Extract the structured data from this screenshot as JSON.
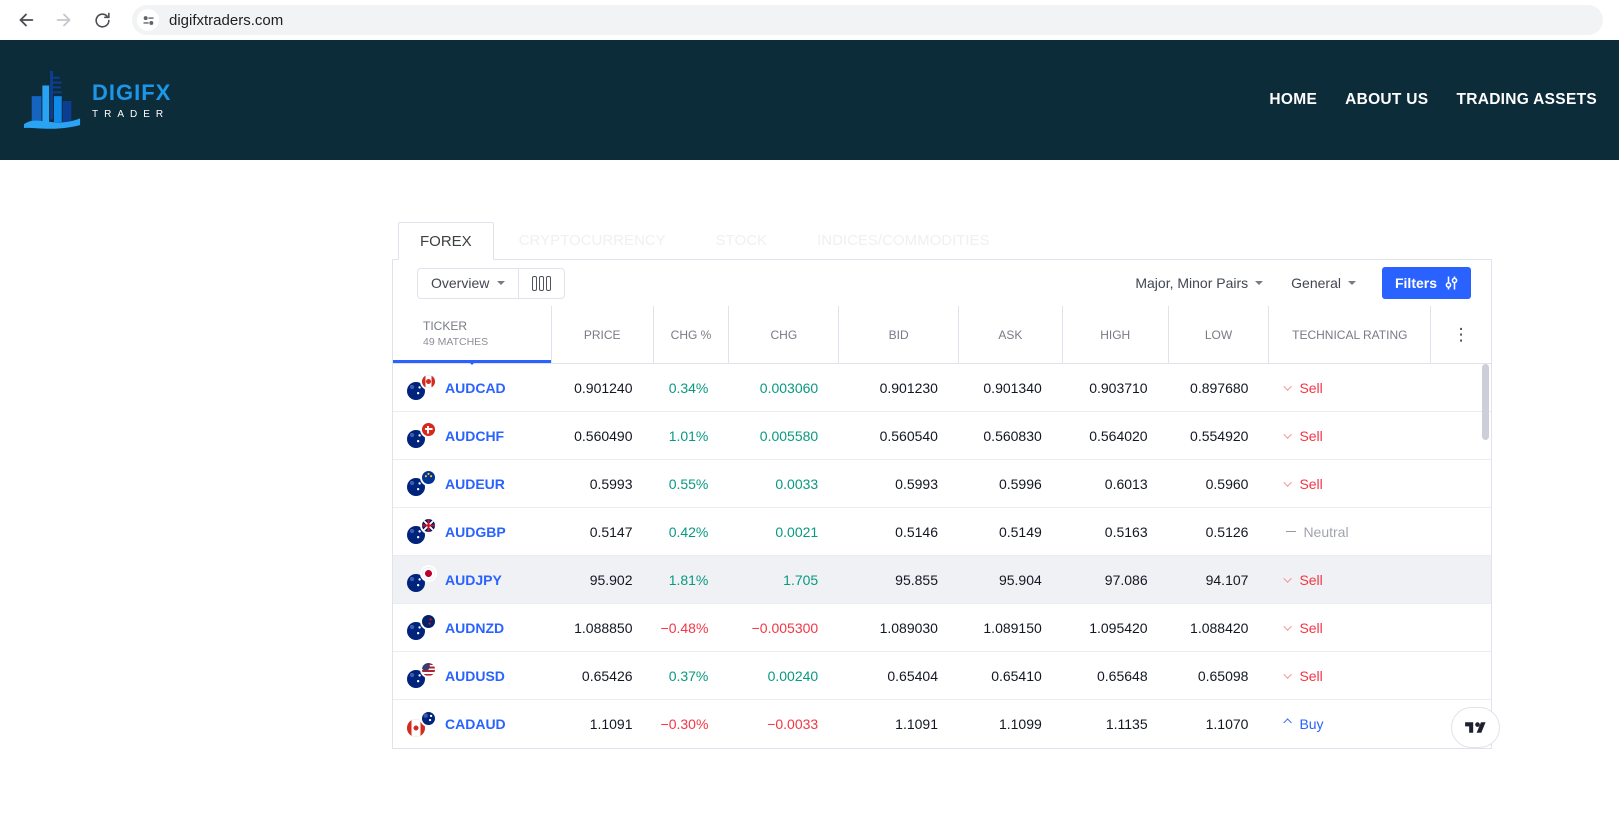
{
  "browser": {
    "url": "digifxtraders.com"
  },
  "header": {
    "logo_title": "DIGIFX",
    "logo_subtitle": "TRADER",
    "nav": [
      {
        "label": "HOME"
      },
      {
        "label": "ABOUT US"
      },
      {
        "label": "TRADING ASSETS"
      }
    ]
  },
  "widget": {
    "tabs": [
      {
        "label": "FOREX",
        "active": true
      },
      {
        "label": "CRYPTOCURRENCY",
        "active": false
      },
      {
        "label": "STOCK",
        "active": false
      },
      {
        "label": "INDICES/COMMODITIES",
        "active": false
      }
    ],
    "toolbar": {
      "view": "Overview",
      "pairs_filter": "Major, Minor Pairs",
      "category_filter": "General",
      "filters_label": "Filters"
    },
    "table": {
      "ticker_header": "TICKER",
      "matches_label": "49 MATCHES",
      "columns": [
        {
          "label": "PRICE"
        },
        {
          "label": "CHG %"
        },
        {
          "label": "CHG"
        },
        {
          "label": "BID"
        },
        {
          "label": "ASK"
        },
        {
          "label": "HIGH"
        },
        {
          "label": "LOW"
        },
        {
          "label": "TECHNICAL RATING"
        }
      ],
      "rows": [
        {
          "ticker": "AUDCAD",
          "base": "aud",
          "quote": "cad",
          "price": "0.901240",
          "chg_pct": "0.34%",
          "chg": "0.003060",
          "bid": "0.901230",
          "ask": "0.901340",
          "high": "0.903710",
          "low": "0.897680",
          "chg_dir": "up",
          "rating": "Sell",
          "rating_kind": "sell",
          "highlighted": false
        },
        {
          "ticker": "AUDCHF",
          "base": "aud",
          "quote": "chf",
          "price": "0.560490",
          "chg_pct": "1.01%",
          "chg": "0.005580",
          "bid": "0.560540",
          "ask": "0.560830",
          "high": "0.564020",
          "low": "0.554920",
          "chg_dir": "up",
          "rating": "Sell",
          "rating_kind": "sell",
          "highlighted": false
        },
        {
          "ticker": "AUDEUR",
          "base": "aud",
          "quote": "eur",
          "price": "0.5993",
          "chg_pct": "0.55%",
          "chg": "0.0033",
          "bid": "0.5993",
          "ask": "0.5996",
          "high": "0.6013",
          "low": "0.5960",
          "chg_dir": "up",
          "rating": "Sell",
          "rating_kind": "sell",
          "highlighted": false
        },
        {
          "ticker": "AUDGBP",
          "base": "aud",
          "quote": "gbp",
          "price": "0.5147",
          "chg_pct": "0.42%",
          "chg": "0.0021",
          "bid": "0.5146",
          "ask": "0.5149",
          "high": "0.5163",
          "low": "0.5126",
          "chg_dir": "up",
          "rating": "Neutral",
          "rating_kind": "neutral",
          "highlighted": false
        },
        {
          "ticker": "AUDJPY",
          "base": "aud",
          "quote": "jpy",
          "price": "95.902",
          "chg_pct": "1.81%",
          "chg": "1.705",
          "bid": "95.855",
          "ask": "95.904",
          "high": "97.086",
          "low": "94.107",
          "chg_dir": "up",
          "rating": "Sell",
          "rating_kind": "sell",
          "highlighted": true
        },
        {
          "ticker": "AUDNZD",
          "base": "aud",
          "quote": "nzd",
          "price": "1.088850",
          "chg_pct": "−0.48%",
          "chg": "−0.005300",
          "bid": "1.089030",
          "ask": "1.089150",
          "high": "1.095420",
          "low": "1.088420",
          "chg_dir": "down",
          "rating": "Sell",
          "rating_kind": "sell",
          "highlighted": false
        },
        {
          "ticker": "AUDUSD",
          "base": "aud",
          "quote": "usd",
          "price": "0.65426",
          "chg_pct": "0.37%",
          "chg": "0.00240",
          "bid": "0.65404",
          "ask": "0.65410",
          "high": "0.65648",
          "low": "0.65098",
          "chg_dir": "up",
          "rating": "Sell",
          "rating_kind": "sell",
          "highlighted": false
        },
        {
          "ticker": "CADAUD",
          "base": "cad",
          "quote": "aud",
          "price": "1.1091",
          "chg_pct": "−0.30%",
          "chg": "−0.0033",
          "bid": "1.1091",
          "ask": "1.1099",
          "high": "1.1135",
          "low": "1.1070",
          "chg_dir": "down",
          "rating": "Buy",
          "rating_kind": "buy",
          "highlighted": false
        }
      ]
    }
  },
  "icons": {
    "column_menu": "⋮"
  },
  "colors": {
    "accent_blue": "#2962ff",
    "positive": "#089981",
    "negative": "#f23645",
    "neutral": "#9598a1",
    "header_bg": "#0d2c3a",
    "logo_blue": "#1d96e8"
  }
}
